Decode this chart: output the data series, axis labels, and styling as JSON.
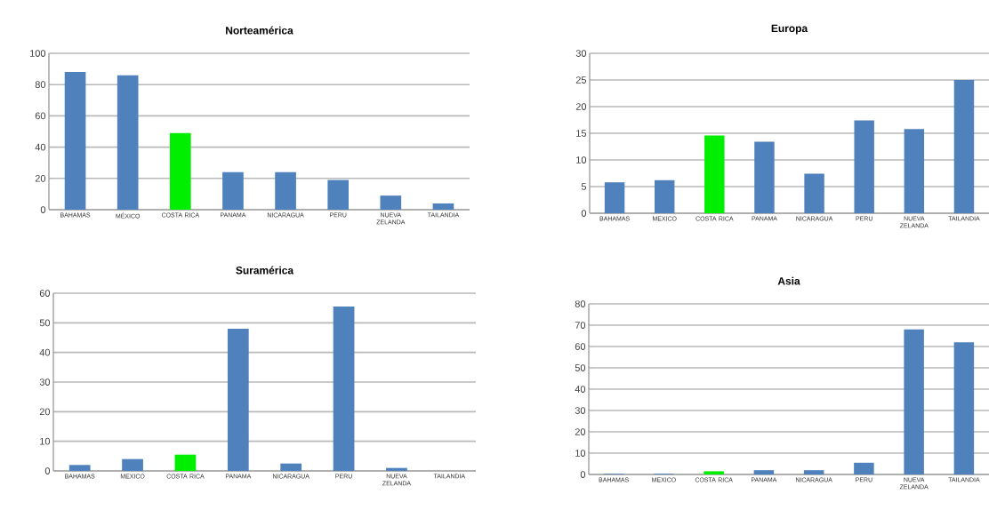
{
  "chart_data": [
    {
      "type": "bar",
      "title": "Norteamérica",
      "categories": [
        "BAHAMAS",
        "MÉXICO",
        "COSTA RICA",
        "PANAMA",
        "NICARAGUA",
        "PERU",
        "NUEVA ZELANDA",
        "TAILANDIA"
      ],
      "values": [
        88,
        86,
        49,
        24,
        24,
        19,
        9,
        4
      ],
      "colors": [
        "#4f81bd",
        "#4f81bd",
        "#00ee00",
        "#4f81bd",
        "#4f81bd",
        "#4f81bd",
        "#4f81bd",
        "#4f81bd"
      ],
      "ylim": [
        0,
        100
      ],
      "yticks": [
        0,
        20,
        40,
        60,
        80,
        100
      ],
      "grid": "y"
    },
    {
      "type": "bar",
      "title": "Europa",
      "categories": [
        "BAHAMAS",
        "MEXICO",
        "COSTA RICA",
        "PANAMA",
        "NICARAGUA",
        "PERU",
        "NUEVA ZELANDA",
        "TAILANDIA"
      ],
      "values": [
        5.8,
        6.2,
        14.6,
        13.4,
        7.4,
        17.4,
        15.8,
        25
      ],
      "colors": [
        "#4f81bd",
        "#4f81bd",
        "#00ee00",
        "#4f81bd",
        "#4f81bd",
        "#4f81bd",
        "#4f81bd",
        "#4f81bd"
      ],
      "ylim": [
        0,
        30
      ],
      "yticks": [
        0,
        5,
        10,
        15,
        20,
        25,
        30
      ],
      "grid": "y"
    },
    {
      "type": "bar",
      "title": "Suramérica",
      "categories": [
        "BAHAMAS",
        "MEXICO",
        "COSTA RICA",
        "PANAMA",
        "NICARAGUA",
        "PERU",
        "NUEVA ZELANDA",
        "TAILANDIA"
      ],
      "values": [
        2,
        4,
        5.5,
        48,
        2.5,
        55.5,
        1,
        0
      ],
      "colors": [
        "#4f81bd",
        "#4f81bd",
        "#00ee00",
        "#4f81bd",
        "#4f81bd",
        "#4f81bd",
        "#4f81bd",
        "#4f81bd"
      ],
      "ylim": [
        0,
        60
      ],
      "yticks": [
        0,
        10,
        20,
        30,
        40,
        50,
        60
      ],
      "grid": "y"
    },
    {
      "type": "bar",
      "title": "Asia",
      "categories": [
        "BAHAMAS",
        "MEXICO",
        "COSTA RICA",
        "PANAMA",
        "NICARAGUA",
        "PERU",
        "NUEVA ZELANDA",
        "TAILANDIA"
      ],
      "values": [
        0.3,
        0.3,
        1.5,
        2,
        2,
        5.5,
        68,
        62
      ],
      "colors": [
        "#4f81bd",
        "#4f81bd",
        "#00ee00",
        "#4f81bd",
        "#4f81bd",
        "#4f81bd",
        "#4f81bd",
        "#4f81bd"
      ],
      "ylim": [
        0,
        80
      ],
      "yticks": [
        0,
        10,
        20,
        30,
        40,
        50,
        60,
        70,
        80
      ],
      "grid": "y"
    }
  ]
}
